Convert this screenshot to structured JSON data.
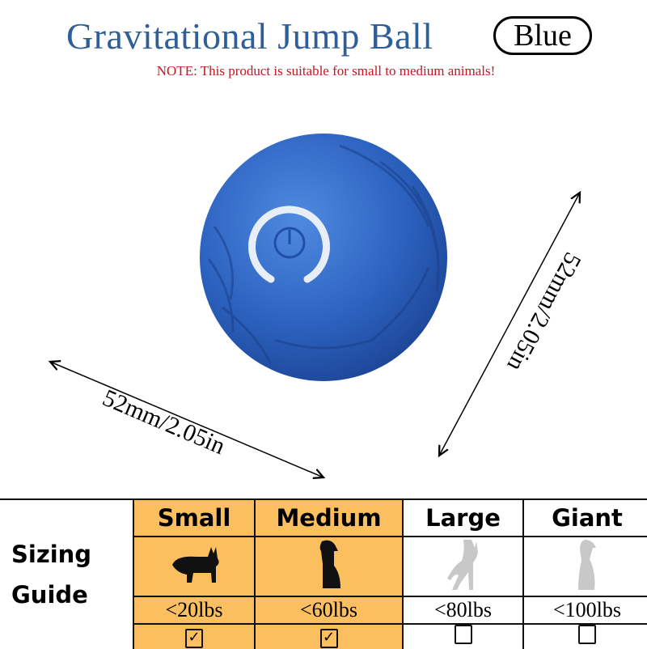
{
  "header": {
    "title": "Gravitational Jump Ball",
    "color_badge": "Blue",
    "note": "NOTE: This product is suitable for small to medium animals!"
  },
  "product": {
    "icon": "power-icon",
    "ball_color": "#2f66c4",
    "width_label": "52mm/2.05in",
    "height_label": "52mm/2.05in"
  },
  "sizing_guide": {
    "title": "Sizing Guide",
    "highlight_color": "#fbbf5f",
    "columns": [
      {
        "label": "Small",
        "weight": "<20lbs",
        "checked": true,
        "icon": "corgi-icon"
      },
      {
        "label": "Medium",
        "weight": "<60lbs",
        "checked": true,
        "icon": "sitting-dog-icon"
      },
      {
        "label": "Large",
        "weight": "<80lbs",
        "checked": false,
        "icon": "shepherd-dog-icon"
      },
      {
        "label": "Giant",
        "weight": "<100lbs",
        "checked": false,
        "icon": "large-dog-icon"
      }
    ]
  }
}
